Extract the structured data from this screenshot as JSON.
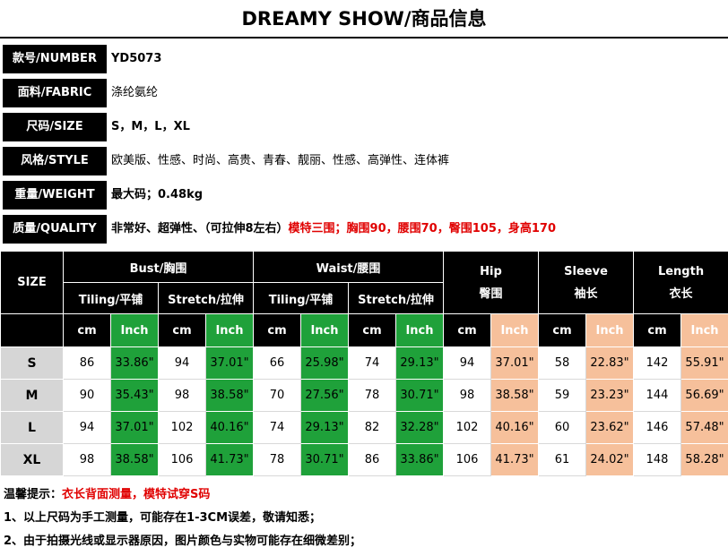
{
  "title": "DREAMY SHOW/商品信息",
  "info": [
    {
      "label": "款号/NUMBER",
      "value": "YD5073"
    },
    {
      "label": "面料/FABRIC",
      "value": "涤纶氨纶"
    },
    {
      "label": "尺码/SIZE",
      "value": "S，M，L，XL"
    },
    {
      "label": "风格/STYLE",
      "value": "欧美版、性感、时尚、高贵、青春、靓丽、性感、高弹性、连体裤"
    },
    {
      "label": "重量/WEIGHT",
      "value": "最大码；0.48kg"
    },
    {
      "label": "质量/QUALITY",
      "value": "非常好、超弹性、（可拉伸8左右）",
      "highlight": "模特三围；胸围90，腰围70，臀围105，身高170"
    }
  ],
  "table": {
    "size_header": "SIZE",
    "bust": "Bust/胸围",
    "waist": "Waist/腰围",
    "hip_en": "Hip",
    "hip_cn": "臀围",
    "sleeve_en": "Sleeve",
    "sleeve_cn": "袖长",
    "length_en": "Length",
    "length_cn": "衣长",
    "tiling": "Tiling/平铺",
    "stretch": "Stretch/拉伸",
    "cm": "cm",
    "inch": "Inch",
    "rows": [
      {
        "size": "S",
        "cells": [
          "86",
          "33.86\"",
          "94",
          "37.01\"",
          "66",
          "25.98\"",
          "74",
          "29.13\"",
          "94",
          "37.01\"",
          "58",
          "22.83\"",
          "142",
          "55.91\""
        ]
      },
      {
        "size": "M",
        "cells": [
          "90",
          "35.43\"",
          "98",
          "38.58\"",
          "70",
          "27.56\"",
          "78",
          "30.71\"",
          "98",
          "38.58\"",
          "59",
          "23.23\"",
          "144",
          "56.69\""
        ]
      },
      {
        "size": "L",
        "cells": [
          "94",
          "37.01\"",
          "102",
          "40.16\"",
          "74",
          "29.13\"",
          "82",
          "32.28\"",
          "102",
          "40.16\"",
          "60",
          "23.62\"",
          "146",
          "57.48\""
        ]
      },
      {
        "size": "XL",
        "cells": [
          "98",
          "38.58\"",
          "106",
          "41.73\"",
          "78",
          "30.71\"",
          "86",
          "33.86\"",
          "106",
          "41.73\"",
          "61",
          "24.02\"",
          "148",
          "58.28\""
        ]
      }
    ]
  },
  "notes": {
    "tip_label": "温馨提示：",
    "tip_text": "衣长背面测量，模特试穿S码",
    "line1": "1、以上尺码为手工测量，可能存在1-3CM误差，敬请知悉；",
    "line2": "2、由于拍摄光线或显示器原因，图片颜色与实物可能存在细微差别；"
  },
  "colors": {
    "header_black": "#000000",
    "inch_green": "#1fa13a",
    "inch_peach": "#f6c09b",
    "size_gray": "#d6d6d6",
    "highlight_red": "#e00000"
  }
}
